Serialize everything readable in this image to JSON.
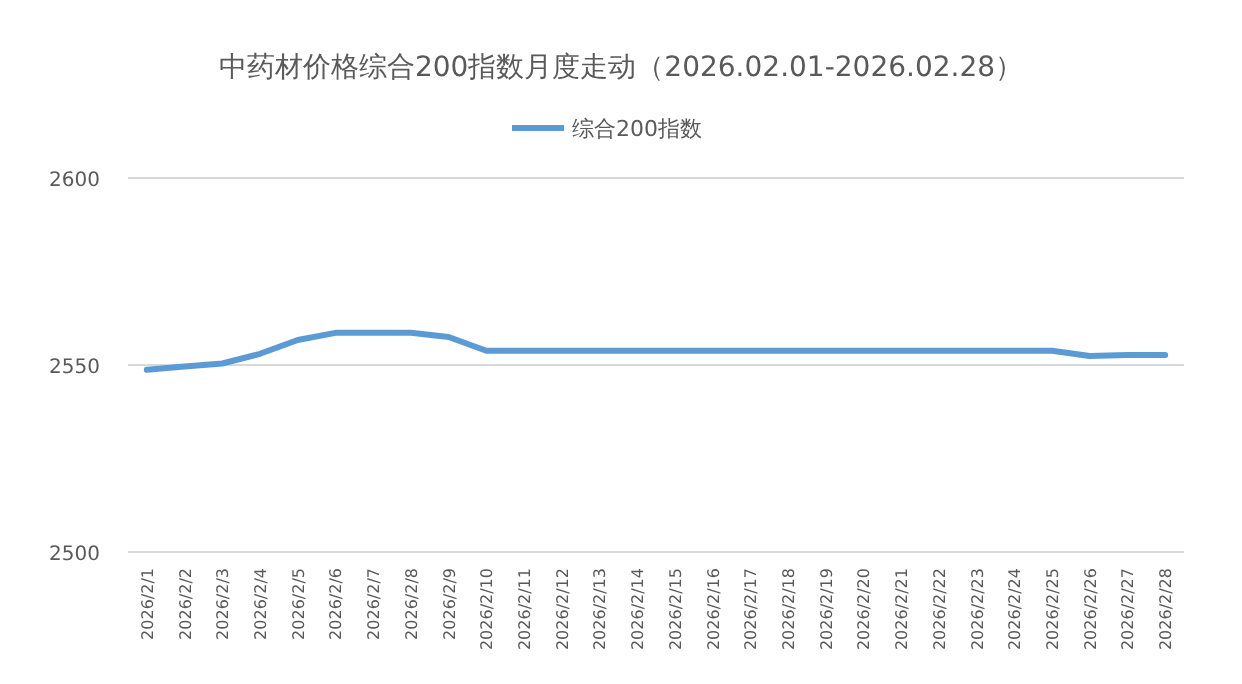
{
  "chart_data": {
    "type": "line",
    "title": "中药材价格综合200指数月度走动（2026.02.01-2026.02.28）",
    "categories": [
      "2026/2/1",
      "2026/2/2",
      "2026/2/3",
      "2026/2/4",
      "2026/2/5",
      "2026/2/6",
      "2026/2/7",
      "2026/2/8",
      "2026/2/9",
      "2026/2/10",
      "2026/2/11",
      "2026/2/12",
      "2026/2/13",
      "2026/2/14",
      "2026/2/15",
      "2026/2/16",
      "2026/2/17",
      "2026/2/18",
      "2026/2/19",
      "2026/2/20",
      "2026/2/21",
      "2026/2/22",
      "2026/2/23",
      "2026/2/24",
      "2026/2/25",
      "2026/2/26",
      "2026/2/27",
      "2026/2/28"
    ],
    "series": [
      {
        "name": "综合200指数",
        "color": "#5b9bd5",
        "values": [
          2548.7,
          2549.6,
          2550.4,
          2553,
          2556.7,
          2558.6,
          2558.6,
          2558.6,
          2557.5,
          2553.8,
          2553.8,
          2553.8,
          2553.8,
          2553.8,
          2553.8,
          2553.8,
          2553.8,
          2553.8,
          2553.8,
          2553.8,
          2553.8,
          2553.8,
          2553.8,
          2553.8,
          2553.8,
          2552.4,
          2552.7,
          2552.7
        ]
      }
    ],
    "ylim": [
      2500,
      2600
    ],
    "yticks": [
      2500,
      2550,
      2600
    ],
    "grid": "y",
    "legend": "top",
    "marker": "none",
    "line_style": "solid"
  }
}
